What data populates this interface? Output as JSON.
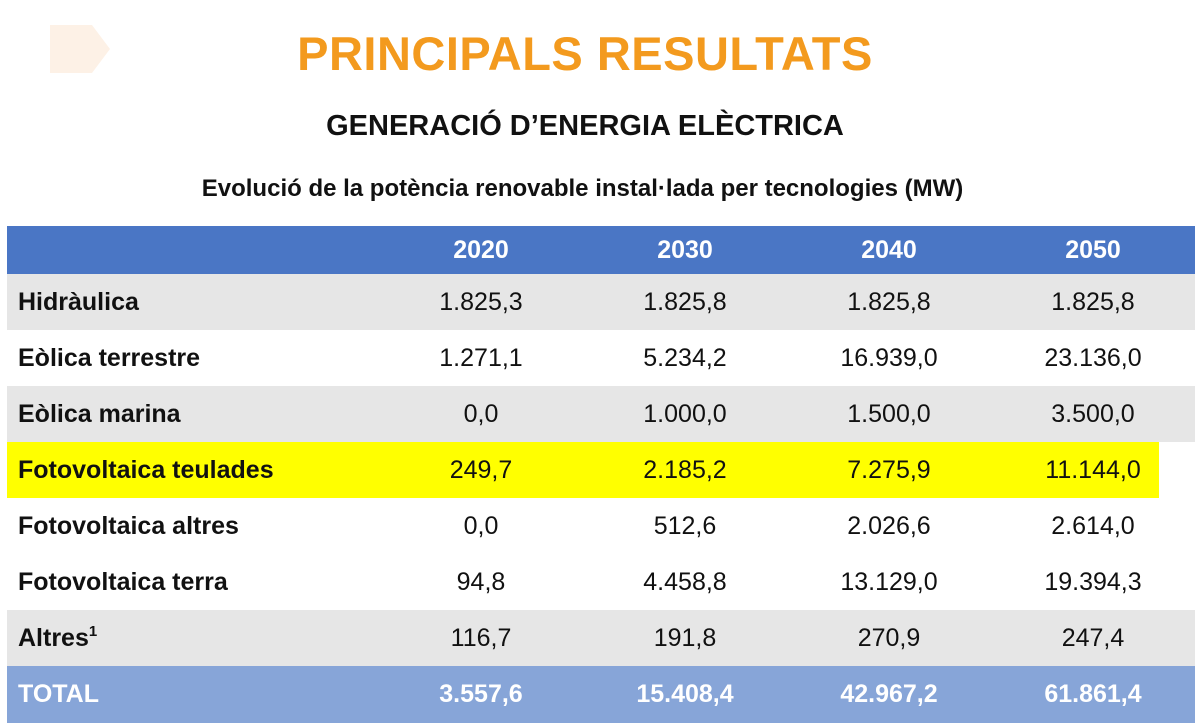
{
  "title": "PRINCIPALS RESULTATS",
  "subtitle": "GENERACIÓ D’ENERGIA ELÈCTRICA",
  "table_caption": "Evolució de la potència renovable instal·lada per tecnologies (MW)",
  "colors": {
    "title": "#f39a1e",
    "header_bg": "#4a76c5",
    "total_bg": "#87a5d8",
    "highlight": "#ffff00",
    "stripe": "#e6e6e6"
  },
  "table": {
    "columns": [
      "2020",
      "2030",
      "2040",
      "2050"
    ],
    "rows": [
      {
        "label": "Hidràulica",
        "note": "",
        "values": [
          "1.825,3",
          "1.825,8",
          "1.825,8",
          "1.825,8"
        ]
      },
      {
        "label": "Eòlica terrestre",
        "note": "",
        "values": [
          "1.271,1",
          "5.234,2",
          "16.939,0",
          "23.136,0"
        ]
      },
      {
        "label": "Eòlica marina",
        "note": "",
        "values": [
          "0,0",
          "1.000,0",
          "1.500,0",
          "3.500,0"
        ]
      },
      {
        "label": "Fotovoltaica teulades",
        "note": "",
        "values": [
          "249,7",
          "2.185,2",
          "7.275,9",
          "11.144,0"
        ]
      },
      {
        "label": "Fotovoltaica altres",
        "note": "",
        "values": [
          "0,0",
          "512,6",
          "2.026,6",
          "2.614,0"
        ]
      },
      {
        "label": "Fotovoltaica terra",
        "note": "",
        "values": [
          "94,8",
          "4.458,8",
          "13.129,0",
          "19.394,3"
        ]
      },
      {
        "label": "Altres",
        "note": "1",
        "values": [
          "116,7",
          "191,8",
          "270,9",
          "247,4"
        ]
      }
    ],
    "total": {
      "label": "TOTAL",
      "values": [
        "3.557,6",
        "15.408,4",
        "42.967,2",
        "61.861,4"
      ]
    }
  }
}
